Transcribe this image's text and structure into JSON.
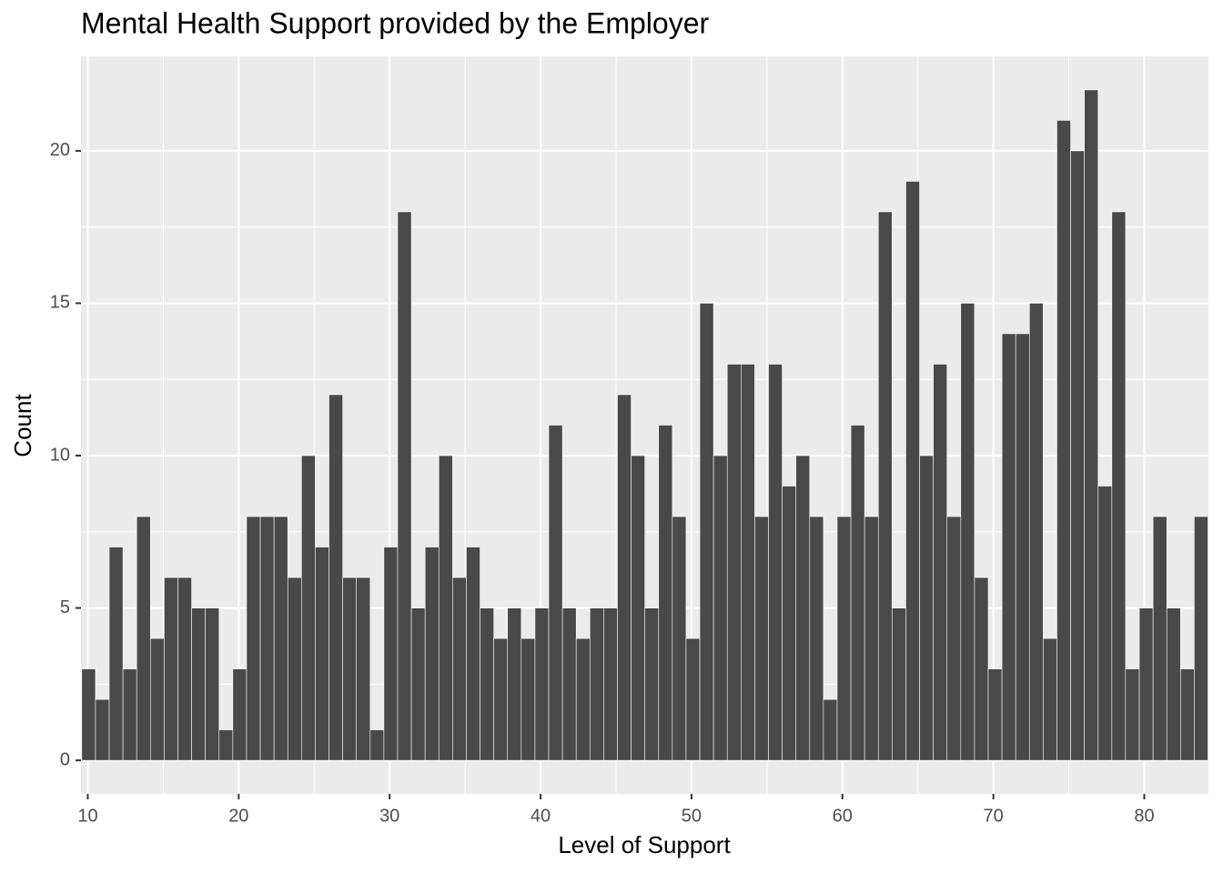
{
  "chart_data": {
    "type": "histogram",
    "title": "Mental Health Support provided by the Employer",
    "x_label": "Level of Support",
    "y_label": "Count",
    "bins": [
      9.6,
      10.51,
      11.42,
      12.33,
      13.24,
      14.15,
      15.06,
      15.97,
      16.88,
      17.79,
      18.7,
      19.61,
      20.52,
      21.43,
      22.34,
      23.25,
      24.16,
      25.07,
      25.98,
      26.89,
      27.8,
      28.71,
      29.62,
      30.53,
      31.44,
      32.35,
      33.26,
      34.17,
      35.08,
      35.99,
      36.9,
      37.81,
      38.72,
      39.63,
      40.54,
      41.45,
      42.36,
      43.27,
      44.18,
      45.09,
      46,
      46.91,
      47.82,
      48.73,
      49.64,
      50.55,
      51.46,
      52.37,
      53.28,
      54.19,
      55.1,
      56.01,
      56.92,
      57.83,
      58.74,
      59.65,
      60.56,
      61.47,
      62.38,
      63.29,
      64.2,
      65.11,
      66.02,
      66.93,
      67.84,
      68.75,
      69.66,
      70.57,
      71.48,
      72.39,
      73.3,
      74.21,
      75.12,
      76.03,
      76.94,
      77.85,
      78.76,
      79.67,
      80.58,
      81.49,
      82.4,
      83.31,
      84.22
    ],
    "values": [
      3,
      2,
      7,
      3,
      8,
      4,
      6,
      6,
      5,
      5,
      1,
      3,
      8,
      8,
      8,
      6,
      10,
      7,
      12,
      6,
      6,
      1,
      7,
      18,
      5,
      7,
      10,
      6,
      7,
      5,
      4,
      5,
      4,
      5,
      11,
      5,
      4,
      5,
      5,
      12,
      10,
      5,
      11,
      8,
      4,
      15,
      10,
      13,
      13,
      8,
      13,
      9,
      10,
      8,
      2,
      8,
      11,
      8,
      18,
      5,
      19,
      10,
      13,
      8,
      15,
      6,
      3,
      14,
      14,
      15,
      4,
      21,
      20,
      22,
      9,
      18,
      3,
      5,
      8,
      5,
      3,
      8
    ],
    "color": "#494949",
    "xlim": [
      9.55,
      84.25
    ],
    "xticks": [
      10,
      20,
      30,
      40,
      50,
      60,
      70,
      80
    ],
    "ylim": [
      -1.1,
      23.1
    ],
    "yticks": [
      0,
      5,
      10,
      15,
      20
    ],
    "grid": true
  }
}
